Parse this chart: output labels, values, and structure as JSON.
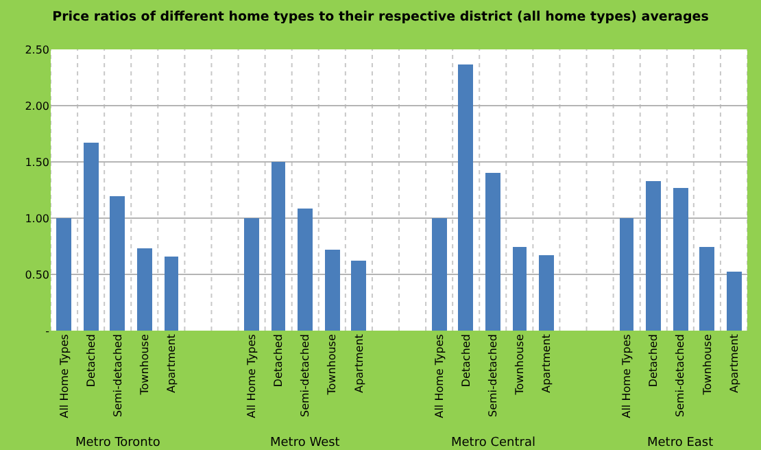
{
  "chart_data": {
    "type": "bar",
    "title": "Price ratios of different home types to their respective district (all home types) averages",
    "categories": [
      "All Home Types",
      "Detached",
      "Semi-detached",
      "Townhouse",
      "Apartment",
      null,
      null,
      "All Home Types",
      "Detached",
      "Semi-detached",
      "Townhouse",
      "Apartment",
      null,
      null,
      "All Home Types",
      "Detached",
      "Semi-detached",
      "Townhouse",
      "Apartment",
      null,
      null,
      "All Home Types",
      "Detached",
      "Semi-detached",
      "Townhouse",
      "Apartment"
    ],
    "series": [
      {
        "color": "#4a7ebb",
        "values": [
          1.0,
          1.67,
          1.19,
          0.73,
          0.66,
          null,
          null,
          1.0,
          1.5,
          1.09,
          0.72,
          0.62,
          null,
          null,
          1.0,
          2.37,
          1.4,
          0.75,
          0.67,
          null,
          null,
          1.0,
          1.33,
          1.27,
          0.74,
          0.53
        ]
      }
    ],
    "ylim": [
      0,
      2.5
    ],
    "yticks": [
      {
        "value": 0,
        "label": "-"
      },
      {
        "value": 0.5,
        "label": "0.50"
      },
      {
        "value": 1,
        "label": "1.00"
      },
      {
        "value": 1.5,
        "label": "1.50"
      },
      {
        "value": 2,
        "label": "2.00"
      },
      {
        "value": 2.5,
        "label": "2.50"
      }
    ],
    "grid": true,
    "annotations": [
      "Metro Toronto",
      "Metro West",
      "Metro Central",
      "Metro East"
    ]
  }
}
